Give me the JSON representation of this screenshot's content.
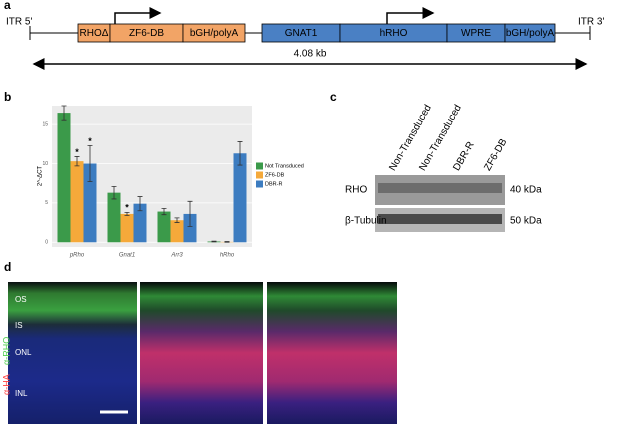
{
  "panel_labels": [
    "a",
    "b",
    "c",
    "d"
  ],
  "construct": {
    "itr_left": "ITR 5'",
    "itr_right": "ITR 3'",
    "length": "4.08 kb",
    "cassette1": [
      "RHOΔ",
      "ZF6-DB",
      "bGH/polyA"
    ],
    "cassette2": [
      "GNAT1",
      "hRHO",
      "WPRE",
      "bGH/polyA"
    ]
  },
  "chart_data": {
    "type": "bar",
    "ylabel": "2^-ΔCT",
    "categories": [
      "pRho",
      "Gnat1",
      "Arr3",
      "hRho"
    ],
    "series": [
      {
        "name": "Not Transduced",
        "color": "#3b9a4a",
        "values": [
          16.4,
          6.3,
          3.9,
          0.1
        ],
        "errors": [
          0.9,
          0.8,
          0.4,
          0.05
        ]
      },
      {
        "name": "ZF6-DB",
        "color": "#f5a93a",
        "values": [
          10.3,
          3.6,
          2.8,
          0.05
        ],
        "errors": [
          0.6,
          0.2,
          0.3,
          0.05
        ]
      },
      {
        "name": "DBR-R",
        "color": "#3c7cc0",
        "values": [
          10.0,
          4.9,
          3.6,
          11.3
        ],
        "errors": [
          2.3,
          0.9,
          1.6,
          1.5
        ]
      }
    ],
    "ylim": [
      -0.6,
      17.3
    ],
    "yticks": [
      0,
      5,
      10,
      15
    ],
    "annotations": [
      {
        "text": "*",
        "category": 0,
        "series": 1
      },
      {
        "text": "*",
        "category": 0,
        "series": 2
      },
      {
        "text": "*",
        "category": 1,
        "series": 1
      }
    ]
  },
  "western_blot": {
    "lanes": [
      "Non-Transduced",
      "Non-Transduced",
      "DBR-R",
      "ZF6-DB"
    ],
    "rows": [
      {
        "label": "RHO",
        "size": "40 kDa"
      },
      {
        "label": "β-Tubulin",
        "size": "50 kDa"
      }
    ]
  },
  "images": {
    "stain_red": "α-HA",
    "stain_green": "α-RHO",
    "layers": [
      "OS",
      "IS",
      "ONL",
      "INL"
    ]
  }
}
